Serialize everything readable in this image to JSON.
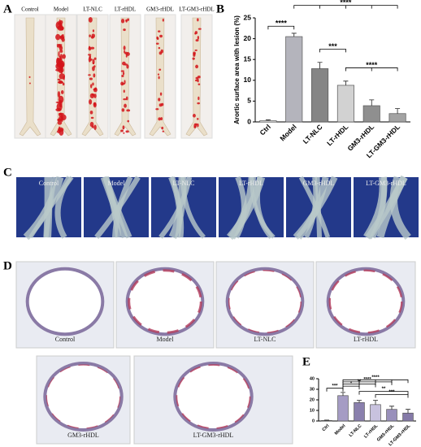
{
  "figure": {
    "panels": [
      "A",
      "B",
      "C",
      "D",
      "E"
    ]
  },
  "panel_a": {
    "labels": [
      "Control",
      "Model",
      "LT-NLC",
      "LT-rHDL",
      "GM3-rHDL",
      "LT-GM3-rHDL"
    ]
  },
  "panel_c": {
    "labels": [
      "Control",
      "Model",
      "LT-NLC",
      "LT-rHDL",
      "GM3-rHDL",
      "LT-GM3-rHDL"
    ]
  },
  "panel_d": {
    "labels": [
      "Control",
      "Model",
      "LT-NLC",
      "LT-rHDL",
      "GM3-rHDL",
      "LT-GM3-rHDL"
    ]
  },
  "chart_data": [
    {
      "type": "bar",
      "y_label": "Arortic surface area with lesion (%)",
      "categories": [
        "Ctrl",
        "Model",
        "LT-NLC",
        "LT-rHDL",
        "GM3-rHDL",
        "LT-GM3-rHDL"
      ],
      "values": [
        0.3,
        20.5,
        12.8,
        8.8,
        3.9,
        2.0
      ],
      "errors": [
        0.2,
        0.8,
        1.5,
        1.0,
        1.4,
        1.2
      ],
      "colors": [
        "#ffffff",
        "#b4b4bc",
        "#858585",
        "#d2d2d2",
        "#8f8f8f",
        "#a3a3a3"
      ],
      "ylim": [
        0,
        25
      ],
      "yticks": [
        0,
        5,
        10,
        15,
        20,
        25
      ],
      "annotations": [
        "****",
        "****",
        "***",
        "****"
      ]
    },
    {
      "type": "bar",
      "categories": [
        "Ctrl",
        "Model",
        "LT-NLC",
        "LT-rHDL",
        "GM3-rHDL",
        "LT-GM3-rHDL"
      ],
      "values": [
        0.5,
        24,
        17.5,
        15.5,
        11,
        7.5
      ],
      "errors": [
        0.3,
        3,
        2,
        4,
        3,
        3.5
      ],
      "colors": [
        "#ffffff",
        "#a59cc4",
        "#8a80ad",
        "#c8c2de",
        "#9990bb",
        "#857aa8"
      ],
      "ylim": [
        0,
        40
      ],
      "yticks": [
        0,
        10,
        20,
        30,
        40
      ],
      "annotations": [
        "***",
        "*",
        "**",
        "****",
        "****",
        "**",
        "***"
      ]
    }
  ]
}
